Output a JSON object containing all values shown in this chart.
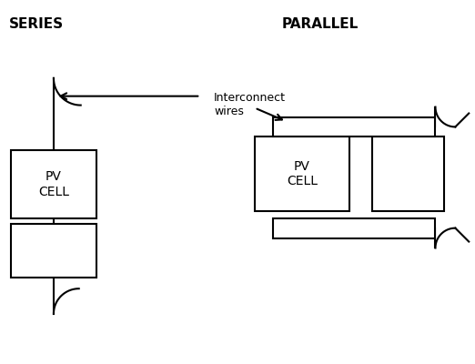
{
  "bg_color": "#ffffff",
  "line_color": "#000000",
  "line_width": 1.5,
  "series_label": "SERIES",
  "parallel_label": "PARALLEL",
  "interconnect_label": "Interconnect\nwires",
  "pv_cell_label": "PV\nCELL",
  "figsize": [
    5.22,
    4.0
  ],
  "dpi": 100
}
